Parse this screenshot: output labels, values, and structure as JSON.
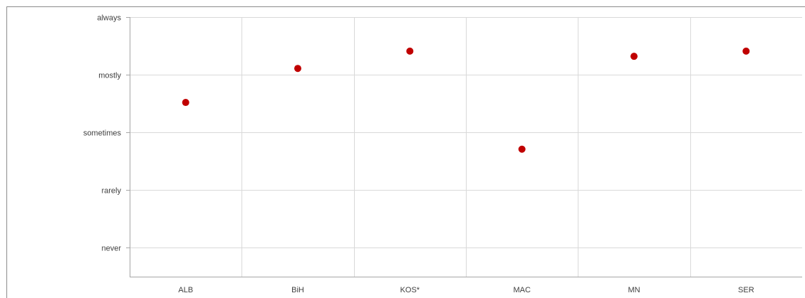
{
  "chart_data": {
    "type": "scatter",
    "categories": [
      "ALB",
      "BiH",
      "KOS*",
      "MAC",
      "MN",
      "SER"
    ],
    "y_levels": [
      "never",
      "rarely",
      "sometimes",
      "mostly",
      "always"
    ],
    "y_level_values": [
      1,
      2,
      3,
      4,
      5
    ],
    "ylim": [
      0.5,
      5
    ],
    "series": [
      {
        "values": [
          3.52,
          4.11,
          4.41,
          2.71,
          4.32,
          4.41
        ],
        "color": "#c00000"
      }
    ],
    "grid": true,
    "xlabel": "",
    "ylabel": "",
    "title": ""
  }
}
